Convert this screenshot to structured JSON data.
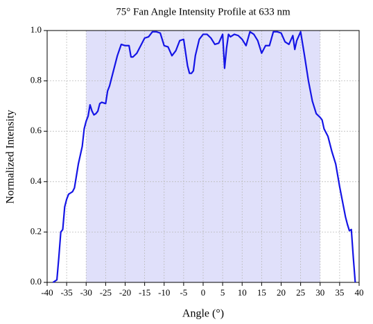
{
  "chart_data": {
    "type": "line",
    "title": "75° Fan Angle Intensity Profile at 633 nm",
    "x_label": "Angle (°)",
    "y_label": "Normalized Intensity",
    "x": [
      -38.5,
      -38,
      -37.5,
      -37,
      -36.5,
      -36,
      -35.5,
      -35,
      -34.5,
      -34,
      -33.5,
      -33,
      -32,
      -31,
      -30.5,
      -30,
      -29.5,
      -29,
      -28.5,
      -28,
      -27.5,
      -27,
      -26.5,
      -26,
      -25,
      -24.5,
      -24,
      -23,
      -22,
      -21,
      -20,
      -19,
      -18.5,
      -18,
      -17,
      -16,
      -15,
      -14,
      -13,
      -12,
      -11,
      -10,
      -9,
      -8,
      -7,
      -6,
      -5,
      -4,
      -3.5,
      -3,
      -2.5,
      -2,
      -1,
      0,
      1,
      2,
      3,
      4,
      5,
      5.5,
      6,
      6.5,
      7,
      8,
      9,
      10,
      11,
      12,
      13,
      14,
      15,
      16,
      17,
      18,
      19,
      20,
      21,
      22,
      23,
      23.5,
      24,
      25,
      26,
      27,
      28,
      29,
      30,
      30.5,
      31,
      32,
      33,
      34,
      35,
      36,
      36.5,
      37,
      37.5,
      38,
      38.5,
      39
    ],
    "series": [
      {
        "name": "Intensity",
        "color": "#1414e6",
        "values": [
          0,
          0.005,
          0.01,
          0.1,
          0.2,
          0.21,
          0.3,
          0.33,
          0.35,
          0.355,
          0.36,
          0.375,
          0.47,
          0.54,
          0.61,
          0.64,
          0.66,
          0.705,
          0.68,
          0.665,
          0.67,
          0.68,
          0.71,
          0.715,
          0.71,
          0.76,
          0.78,
          0.84,
          0.9,
          0.945,
          0.94,
          0.94,
          0.895,
          0.895,
          0.91,
          0.94,
          0.97,
          0.975,
          0.995,
          0.995,
          0.99,
          0.94,
          0.935,
          0.9,
          0.92,
          0.96,
          0.965,
          0.86,
          0.83,
          0.83,
          0.84,
          0.9,
          0.965,
          0.985,
          0.985,
          0.97,
          0.945,
          0.95,
          0.985,
          0.85,
          0.93,
          0.985,
          0.975,
          0.985,
          0.98,
          0.965,
          0.94,
          0.995,
          0.985,
          0.96,
          0.91,
          0.94,
          0.94,
          0.995,
          0.995,
          0.99,
          0.955,
          0.945,
          0.98,
          0.925,
          0.96,
          0.995,
          0.9,
          0.8,
          0.72,
          0.67,
          0.655,
          0.645,
          0.61,
          0.58,
          0.52,
          0.47,
          0.38,
          0.3,
          0.26,
          0.23,
          0.205,
          0.21,
          0.1,
          0
        ]
      }
    ],
    "xlim": [
      -40,
      40
    ],
    "ylim": [
      0,
      1
    ],
    "xticks": [
      -40,
      -35,
      -30,
      -25,
      -20,
      -15,
      -10,
      -5,
      0,
      5,
      10,
      15,
      20,
      25,
      30,
      35,
      40
    ],
    "yticks": [
      {
        "value": 0,
        "label": "0.0"
      },
      0.2,
      0.4,
      0.6,
      0.8,
      {
        "value": 1,
        "label": "1.0"
      }
    ],
    "grid": true,
    "shaded_span": [
      -30,
      30
    ],
    "shaded_color": "#e0e0fa"
  }
}
